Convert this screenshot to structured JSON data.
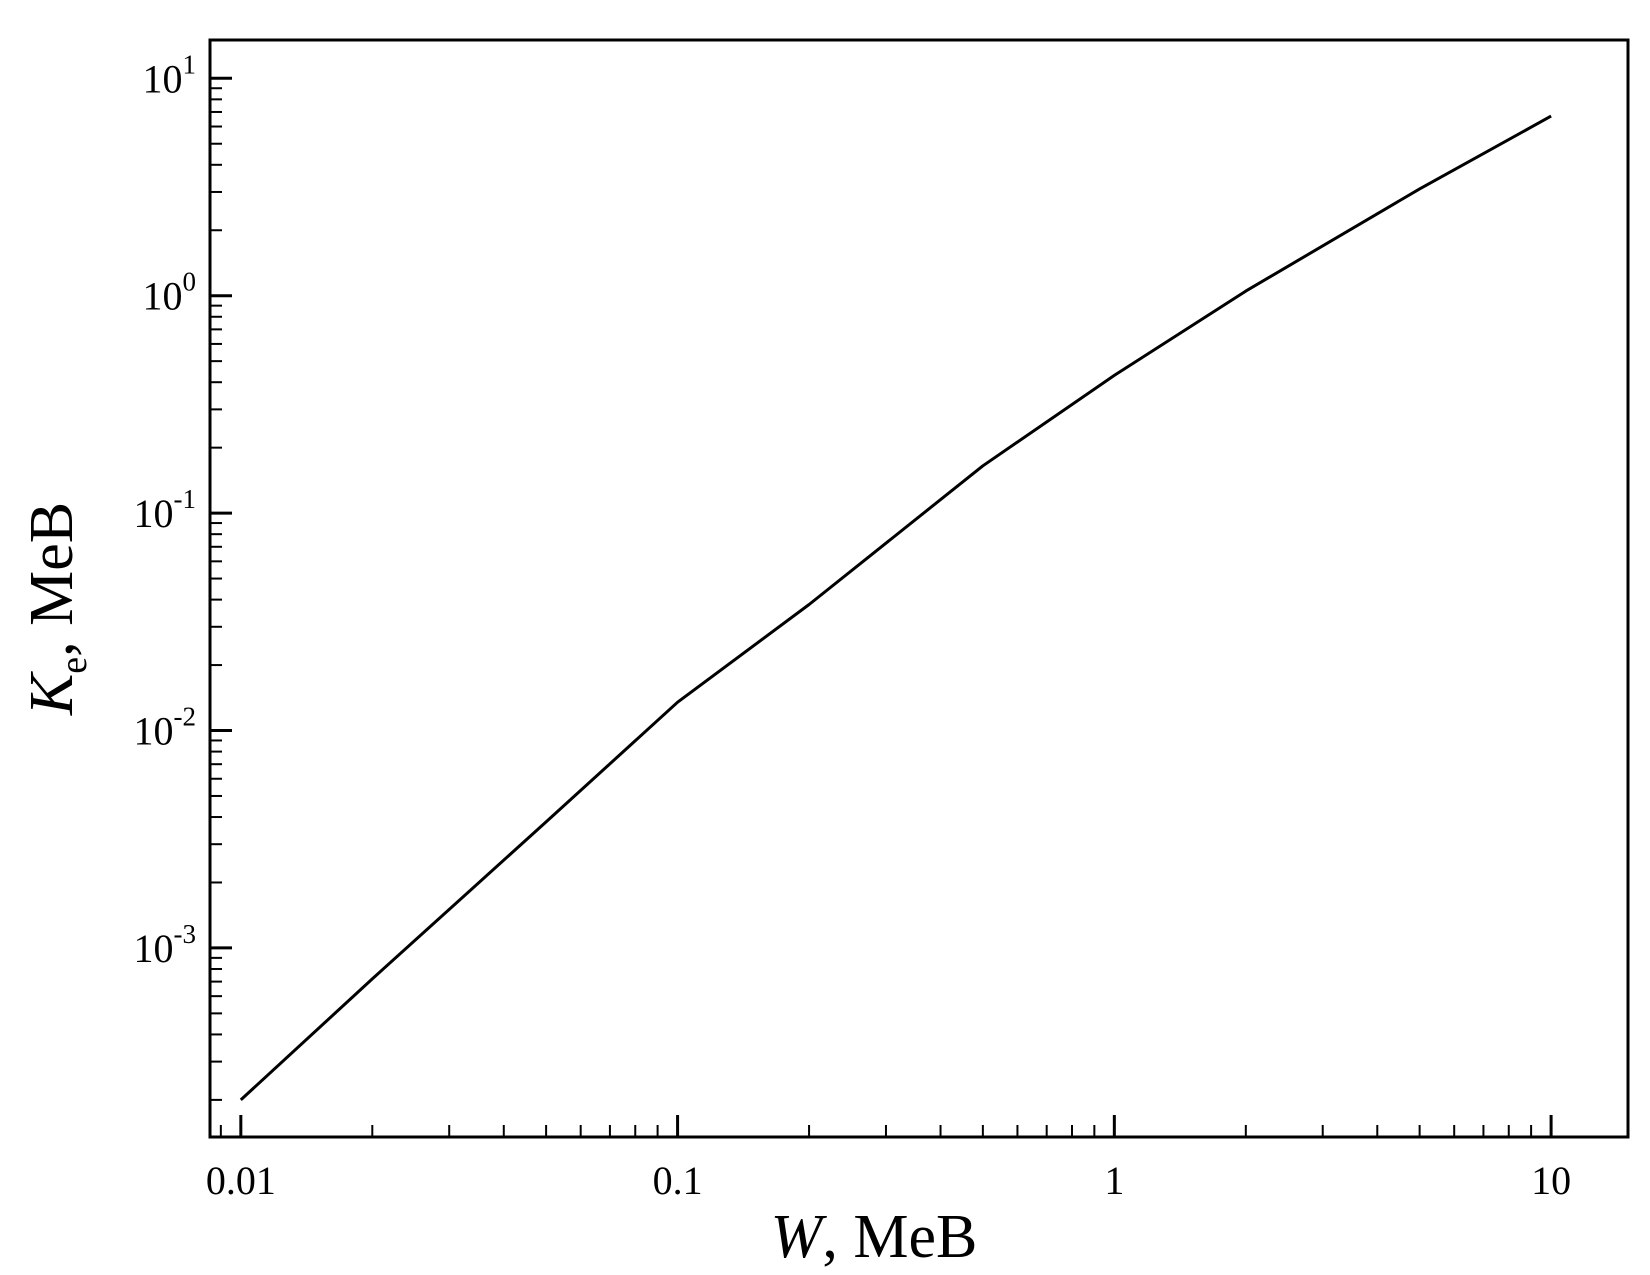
{
  "chart_data": {
    "type": "line",
    "x_scale": "log",
    "y_scale": "log",
    "xlim": [
      0.0085,
      15
    ],
    "ylim": [
      0.000135,
      15
    ],
    "xlabel": {
      "var": "W",
      "unit": ",  MeB"
    },
    "ylabel": {
      "var": "K",
      "sub": "e",
      "unit": ",  MeB"
    },
    "x_ticks": [
      {
        "value": 0.01,
        "label": "0.01"
      },
      {
        "value": 0.1,
        "label": "0.1"
      },
      {
        "value": 1,
        "label": "1"
      },
      {
        "value": 10,
        "label": "10"
      }
    ],
    "y_ticks": [
      {
        "value": 0.001,
        "base": "10",
        "exp": "-3"
      },
      {
        "value": 0.01,
        "base": "10",
        "exp": "-2"
      },
      {
        "value": 0.1,
        "base": "10",
        "exp": "-1"
      },
      {
        "value": 1,
        "base": "10",
        "exp": "0"
      },
      {
        "value": 10,
        "base": "10",
        "exp": "1"
      }
    ],
    "grid": false,
    "series": [
      {
        "color": "#000000",
        "x": [
          0.01,
          0.02,
          0.05,
          0.1,
          0.2,
          0.5,
          1,
          2,
          5,
          10
        ],
        "y": [
          0.0002,
          0.00072,
          0.0038,
          0.0135,
          0.038,
          0.165,
          0.43,
          1.05,
          3.1,
          6.7
        ]
      }
    ]
  }
}
